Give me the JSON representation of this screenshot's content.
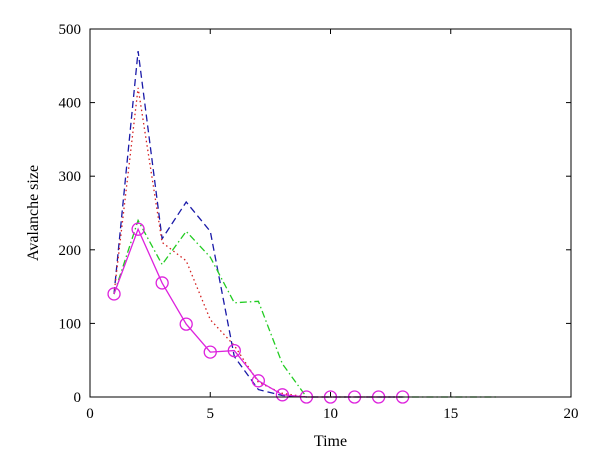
{
  "chart_data": {
    "type": "line",
    "title": "",
    "xlabel": "Time",
    "ylabel": "Avalanche size",
    "xlim": [
      0,
      20
    ],
    "ylim": [
      0,
      500
    ],
    "xticks": [
      0,
      5,
      10,
      15,
      20
    ],
    "yticks": [
      0,
      100,
      200,
      300,
      400,
      500
    ],
    "grid": false,
    "legend": "none",
    "series": [
      {
        "color": "#1a1aa8",
        "dash": "dashed",
        "marker": "none",
        "x": [
          1,
          2,
          3,
          4,
          5,
          6,
          7,
          8,
          9,
          10,
          11,
          12,
          13
        ],
        "y": [
          140,
          470,
          215,
          265,
          225,
          55,
          10,
          2,
          0,
          0,
          0,
          0,
          0
        ]
      },
      {
        "color": "#d42020",
        "dash": "dotted",
        "marker": "none",
        "x": [
          1,
          2,
          3,
          4,
          5,
          6,
          7,
          8,
          9,
          10,
          11,
          12,
          13
        ],
        "y": [
          140,
          420,
          210,
          185,
          105,
          70,
          20,
          5,
          0,
          0,
          0,
          0,
          0
        ]
      },
      {
        "color": "#22cc22",
        "dash": "dashdot",
        "marker": "none",
        "x": [
          1,
          2,
          3,
          4,
          5,
          6,
          7,
          8,
          9,
          10,
          11,
          12,
          13,
          14,
          15,
          16,
          17
        ],
        "y": [
          140,
          240,
          180,
          225,
          190,
          128,
          130,
          45,
          0,
          0,
          0,
          0,
          0,
          0,
          0,
          0,
          0
        ]
      },
      {
        "color": "#dd22dd",
        "dash": "solid",
        "marker": "circle",
        "x": [
          1,
          2,
          3,
          4,
          5,
          6,
          7,
          8,
          9,
          10,
          11,
          12,
          13
        ],
        "y": [
          140,
          228,
          155,
          99,
          61,
          63,
          22,
          3,
          0,
          0,
          0,
          0,
          0
        ]
      }
    ]
  }
}
